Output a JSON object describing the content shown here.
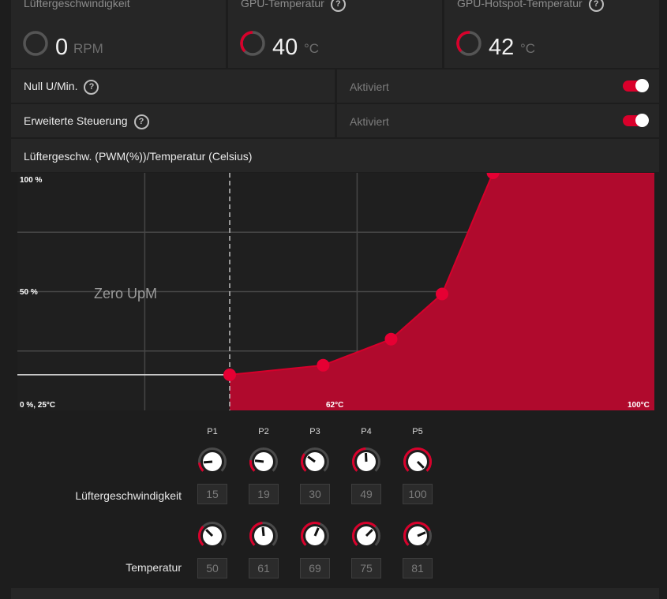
{
  "stats": [
    {
      "label": "Lüftergeschwindigkeit",
      "value": "0",
      "unit": "RPM",
      "help": false
    },
    {
      "label": "GPU-Temperatur",
      "value": "40",
      "unit": "°C",
      "help": true
    },
    {
      "label": "GPU-Hotspot-Temperatur",
      "value": "42",
      "unit": "°C",
      "help": true
    }
  ],
  "settings": [
    {
      "label": "Null U/Min.",
      "status": "Aktiviert",
      "enabled": true
    },
    {
      "label": "Erweiterte Steuerung",
      "status": "Aktiviert",
      "enabled": true
    }
  ],
  "help_glyph": "?",
  "chart_header": "Lüftergeschw. (PWM(%))/Temperatur (Celsius)",
  "chart_data": {
    "type": "area",
    "title": "Lüftergeschw. (PWM(%))/Temperatur (Celsius)",
    "xlim": [
      25,
      100
    ],
    "ylim": [
      0,
      100
    ],
    "tick_labels": {
      "top_left": "100 %",
      "mid_left": "50 %",
      "origin": "0 %, 25°C",
      "x_mid": "62°C",
      "x_max": "100°C"
    },
    "zero_rpm_label": "Zero UpM",
    "zero_rpm_until": 50,
    "points": [
      {
        "name": "P1",
        "x": 50,
        "y": 15
      },
      {
        "name": "P2",
        "x": 61,
        "y": 19
      },
      {
        "name": "P3",
        "x": 69,
        "y": 30
      },
      {
        "name": "P4",
        "x": 75,
        "y": 49
      },
      {
        "name": "P5",
        "x": 81,
        "y": 100
      }
    ],
    "grid": true,
    "colors": {
      "fill": "#b00a2d",
      "line": "#d6002b",
      "point": "#e60033",
      "grid": "#474747",
      "baseline": "#e0e0e0"
    }
  },
  "controls": {
    "point_labels": [
      "P1",
      "P2",
      "P3",
      "P4",
      "P5"
    ],
    "speed_label": "Lüftergeschwindigkeit",
    "speed_values": [
      "15",
      "19",
      "30",
      "49",
      "100"
    ],
    "temp_label": "Temperatur",
    "temp_values": [
      "50",
      "61",
      "69",
      "75",
      "81"
    ]
  },
  "colors": {
    "accent": "#d9002b",
    "panel": "#262626",
    "background": "#1d1d1d"
  }
}
